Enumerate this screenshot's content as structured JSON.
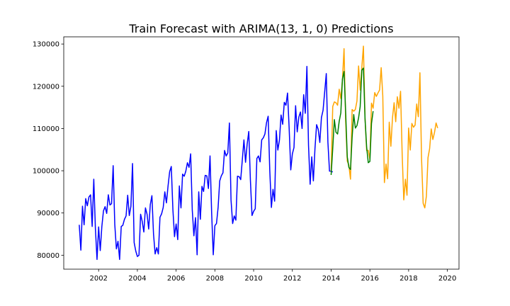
{
  "chart_data": {
    "type": "line",
    "title": "Train Forecast with ARIMA(13, 1, 0) Predictions",
    "xlabel": "",
    "ylabel": "",
    "xlim": [
      2000.2,
      2020.6
    ],
    "ylim": [
      76700,
      131700
    ],
    "x_ticks": [
      2002,
      2004,
      2006,
      2008,
      2010,
      2012,
      2014,
      2016,
      2018,
      2020
    ],
    "x_tick_labels": [
      "2002",
      "2004",
      "2006",
      "2008",
      "2010",
      "2012",
      "2014",
      "2016",
      "2018",
      "2020"
    ],
    "y_ticks": [
      80000,
      90000,
      100000,
      110000,
      120000,
      130000
    ],
    "y_tick_labels": [
      "80000",
      "90000",
      "100000",
      "110000",
      "120000",
      "130000"
    ],
    "grid": false,
    "legend": false,
    "series": [
      {
        "color": "#0000ff",
        "x_start": 2001.0,
        "x_step": 0.0833333,
        "values": [
          87200,
          81200,
          91600,
          87200,
          93400,
          91700,
          93800,
          94300,
          86800,
          98000,
          86300,
          79000,
          86700,
          81100,
          86800,
          90500,
          91500,
          89900,
          94300,
          91900,
          92200,
          101200,
          87300,
          81500,
          83300,
          79000,
          86800,
          87100,
          88500,
          89300,
          94200,
          89400,
          91600,
          101700,
          83000,
          81000,
          79700,
          80000,
          89700,
          88000,
          85500,
          91200,
          89700,
          86200,
          92000,
          94100,
          85000,
          80300,
          81800,
          80300,
          89000,
          89800,
          91300,
          95000,
          92400,
          96400,
          99800,
          101000,
          90800,
          84400,
          87400,
          83700,
          96400,
          91200,
          99200,
          98700,
          99900,
          101900,
          100800,
          104000,
          90700,
          84600,
          88900,
          80100,
          95000,
          88500,
          96300,
          95100,
          98900,
          98800,
          95800,
          103500,
          90000,
          80100,
          87000,
          87500,
          91300,
          97600,
          98800,
          99500,
          104800,
          103500,
          104200,
          111300,
          93100,
          87500,
          89300,
          88300,
          98700,
          98600,
          97900,
          102600,
          107300,
          102000,
          106300,
          109300,
          97800,
          89400,
          90400,
          91000,
          102900,
          103500,
          102100,
          107300,
          107800,
          108700,
          111400,
          112900,
          100100,
          91300,
          95600,
          92800,
          109500,
          104900,
          107300,
          113200,
          111000,
          116200,
          115500,
          118400,
          110100,
          100200,
          104000,
          105500,
          115400,
          109200,
          112700,
          113900,
          110000,
          118000,
          113600,
          124700,
          106000,
          96800,
          103300,
          97600,
          105300,
          110900,
          109800,
          106700,
          112600,
          114300,
          118600,
          123000,
          106800,
          99900,
          99900,
          99700
        ]
      },
      {
        "color": "#ffa500",
        "x_start": 2014.0,
        "x_step": 0.0833333,
        "values": [
          99700,
          115200,
          116300,
          116100,
          115500,
          119300,
          117100,
          121500,
          128900,
          111800,
          102300,
          101300,
          98000,
          114500,
          114100,
          114500,
          116500,
          124800,
          119100,
          124400,
          129500,
          112400,
          104800,
          104800,
          102700,
          116000,
          114800,
          118500,
          117600,
          118400,
          119100,
          124400,
          117700,
          97200,
          101600,
          98100,
          111500,
          105800,
          112500,
          116100,
          111600,
          117500,
          114800,
          118800,
          104000,
          93100,
          98000,
          94200,
          110100,
          104900,
          111200,
          110300,
          110800,
          115800,
          112800,
          123200,
          102900,
          92300,
          91200,
          94000,
          103100,
          105200,
          109900,
          107400,
          109000,
          111300,
          110100
        ]
      },
      {
        "color": "#008000",
        "x_start": 2014.0,
        "x_step": 0.0833333,
        "values": [
          99000,
          105300,
          112100,
          109100,
          108700,
          111700,
          113700,
          121700,
          123500,
          113800,
          103300,
          100800,
          100300,
          107900,
          113300,
          110100,
          110700,
          112500,
          115200,
          123800,
          124300,
          112300,
          105600,
          101900,
          102200,
          111200,
          114100
        ]
      }
    ]
  }
}
